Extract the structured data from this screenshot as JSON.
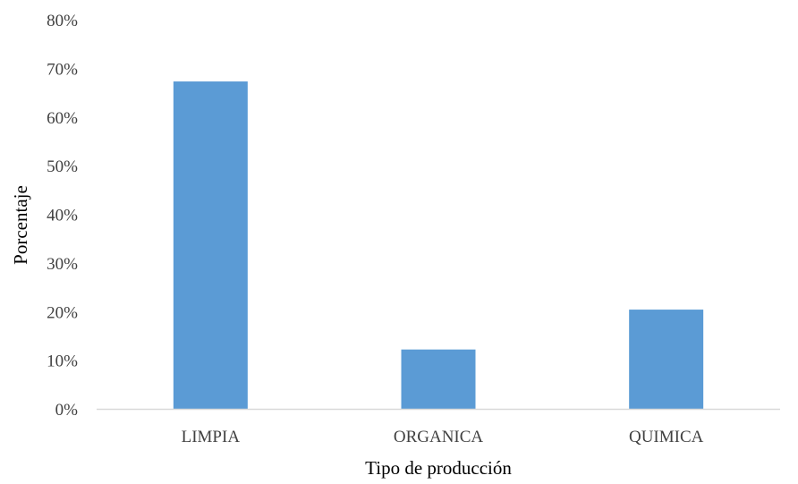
{
  "chart_data": {
    "type": "bar",
    "title": "",
    "xlabel": "Tipo de producción",
    "ylabel": "Porcentaje",
    "categories": [
      "LIMPIA",
      "ORGANICA",
      "QUIMICA"
    ],
    "values": [
      0.673,
      0.122,
      0.204
    ],
    "ylim": [
      0,
      0.8
    ],
    "y_ticks": [
      0,
      0.1,
      0.2,
      0.3,
      0.4,
      0.5,
      0.6,
      0.7,
      0.8
    ],
    "y_tick_labels": [
      "0%",
      "10%",
      "20%",
      "30%",
      "40%",
      "50%",
      "60%",
      "70%",
      "80%"
    ],
    "grid": false,
    "legend": "none",
    "bar_color": "#5B9BD5",
    "axis_color": "#D9D9D9"
  }
}
